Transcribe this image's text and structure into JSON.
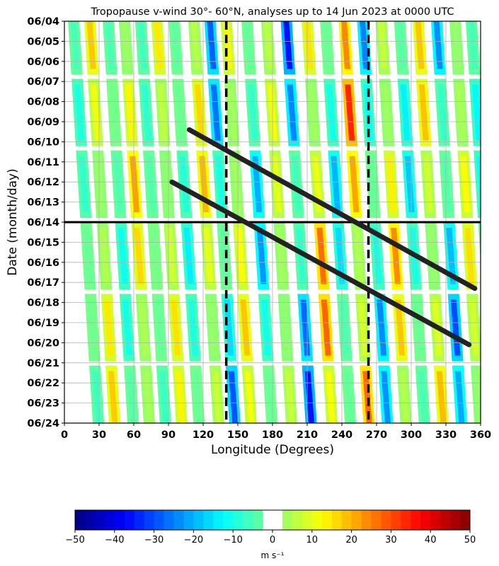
{
  "chart_data": {
    "type": "heatmap",
    "title": "Tropopause v-wind 30°- 60°N, analyses up to 14 Jun 2023 at 0000 UTC",
    "xlabel": "Longitude (Degrees)",
    "ylabel": "Date (month/day)",
    "x_ticks": [
      "0",
      "30",
      "60",
      "90",
      "120",
      "150",
      "180",
      "210",
      "240",
      "270",
      "300",
      "330",
      "360"
    ],
    "y_ticks": [
      "06/04",
      "06/05",
      "06/06",
      "06/07",
      "06/08",
      "06/09",
      "06/10",
      "06/11",
      "06/12",
      "06/13",
      "06/14",
      "06/15",
      "06/16",
      "06/17",
      "06/18",
      "06/19",
      "06/20",
      "06/21",
      "06/22",
      "06/23",
      "06/24"
    ],
    "xlim": [
      0,
      360
    ],
    "ylim_days": [
      "06/04",
      "06/24"
    ],
    "grid": true,
    "colorbar": {
      "label": "m s⁻¹",
      "min": -50,
      "max": 50,
      "ticks": [
        "−50",
        "−40",
        "−30",
        "−20",
        "−10",
        "0",
        "10",
        "20",
        "30",
        "40",
        "50"
      ],
      "zero_band": [
        -2.5,
        2.5
      ]
    },
    "reference_lines": {
      "analysis_date": "06/14",
      "dashed_longitudes": [
        140,
        263
      ]
    },
    "trend_lines": [
      {
        "from": {
          "lon": 108,
          "date": "06/09.4"
        },
        "to": {
          "lon": 355,
          "date": "06/17.3"
        }
      },
      {
        "from": {
          "lon": 93,
          "date": "06/12.0"
        },
        "to": {
          "lon": 350,
          "date": "06/20.1"
        }
      }
    ],
    "bands": [
      {
        "lon": 8,
        "v": -10
      },
      {
        "lon": 22,
        "v": 18
      },
      {
        "lon": 38,
        "v": -12
      },
      {
        "lon": 52,
        "v": 22
      },
      {
        "lon": 66,
        "v": -8
      },
      {
        "lon": 80,
        "v": 16
      },
      {
        "lon": 95,
        "v": -14
      },
      {
        "lon": 112,
        "v": 20
      },
      {
        "lon": 126,
        "v": -30
      },
      {
        "lon": 140,
        "v": 18
      },
      {
        "lon": 158,
        "v": -24
      },
      {
        "lon": 175,
        "v": 12
      },
      {
        "lon": 192,
        "v": -36
      },
      {
        "lon": 210,
        "v": 30
      },
      {
        "lon": 226,
        "v": -20
      },
      {
        "lon": 242,
        "v": 34
      },
      {
        "lon": 258,
        "v": -26
      },
      {
        "lon": 274,
        "v": 24
      },
      {
        "lon": 290,
        "v": -18
      },
      {
        "lon": 306,
        "v": 20
      },
      {
        "lon": 322,
        "v": -30
      },
      {
        "lon": 338,
        "v": 16
      },
      {
        "lon": 352,
        "v": -14
      }
    ]
  }
}
